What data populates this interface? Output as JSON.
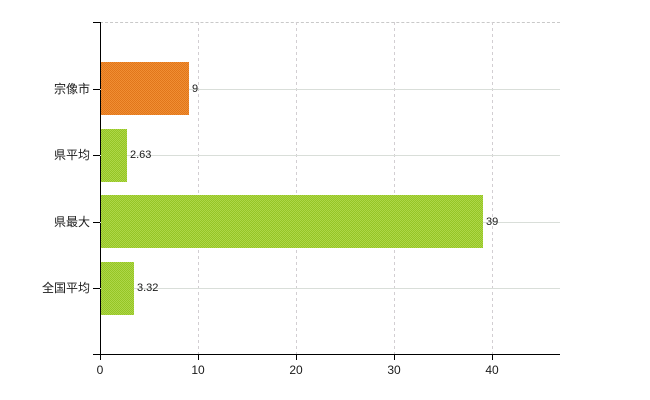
{
  "chart_data": {
    "type": "bar",
    "orientation": "horizontal",
    "title": "",
    "xlabel": "",
    "ylabel": "",
    "categories": [
      "宗像市",
      "県平均",
      "県最大",
      "全国平均"
    ],
    "values": [
      9,
      2.63,
      39,
      3.32
    ],
    "value_labels": [
      "9",
      "2.63",
      "39",
      "3.32"
    ],
    "series_colors": [
      "#e8811f",
      "#a1ce33",
      "#a1ce33",
      "#a1ce33"
    ],
    "series_dither_colors": [
      [
        "#e1761a",
        "#f08e33"
      ],
      [
        "#95c525",
        "#aed748"
      ],
      [
        "#95c525",
        "#aed748"
      ],
      [
        "#95c525",
        "#aed748"
      ]
    ],
    "x_ticks": [
      0,
      10,
      20,
      30,
      40
    ],
    "x_tick_labels": [
      "0",
      "10",
      "20",
      "30",
      "40"
    ],
    "xlim": [
      0,
      46.9
    ],
    "grid": true,
    "legend": false
  },
  "style": {
    "background": "#ffffff",
    "axis_color": "#000000",
    "text_color": "#1a1a1a",
    "h_grid_color": "#d9ded9",
    "v_grid_color": "#d2ced2",
    "top_border_color": "#c9c9c9"
  }
}
